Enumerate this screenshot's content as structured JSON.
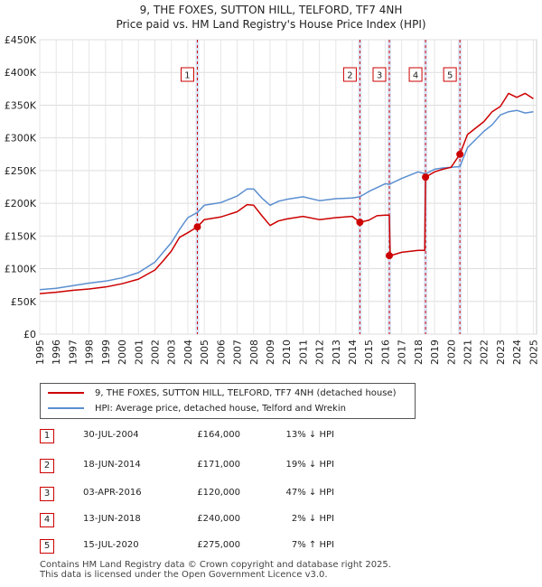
{
  "title_line1": "9, THE FOXES, SUTTON HILL, TELFORD, TF7 4NH",
  "title_line2": "Price paid vs. HM Land Registry's House Price Index (HPI)",
  "colors": {
    "property": "#cc0000",
    "hpi": "#5b8fd0",
    "band": "#dbe4f5",
    "marker_border": "#cc0000"
  },
  "legend": {
    "property": "9, THE FOXES, SUTTON HILL, TELFORD, TF7 4NH (detached house)",
    "hpi": "HPI: Average price, detached house, Telford and Wrekin"
  },
  "transactions": [
    {
      "num": "1",
      "date": "30-JUL-2004",
      "price": "£164,000",
      "hpi": "13% ↓ HPI"
    },
    {
      "num": "2",
      "date": "18-JUN-2014",
      "price": "£171,000",
      "hpi": "19% ↓ HPI"
    },
    {
      "num": "3",
      "date": "03-APR-2016",
      "price": "£120,000",
      "hpi": "47% ↓ HPI"
    },
    {
      "num": "4",
      "date": "13-JUN-2018",
      "price": "£240,000",
      "hpi": "2% ↓ HPI"
    },
    {
      "num": "5",
      "date": "15-JUL-2020",
      "price": "£275,000",
      "hpi": "7% ↑ HPI"
    }
  ],
  "footer_line1": "Contains HM Land Registry data © Crown copyright and database right 2025.",
  "footer_line2": "This data is licensed under the Open Government Licence v3.0.",
  "chart_data": {
    "type": "line",
    "xlabel": "",
    "ylabel": "",
    "xlim": [
      1995,
      2025.2
    ],
    "ylim": [
      0,
      450000
    ],
    "grid": true,
    "y_ticks": [
      {
        "value": 0,
        "label": "£0"
      },
      {
        "value": 50000,
        "label": "£50K"
      },
      {
        "value": 100000,
        "label": "£100K"
      },
      {
        "value": 150000,
        "label": "£150K"
      },
      {
        "value": 200000,
        "label": "£200K"
      },
      {
        "value": 250000,
        "label": "£250K"
      },
      {
        "value": 300000,
        "label": "£300K"
      },
      {
        "value": 350000,
        "label": "£350K"
      },
      {
        "value": 400000,
        "label": "£400K"
      },
      {
        "value": 450000,
        "label": "£450K"
      }
    ],
    "x_ticks": [
      "1995",
      "1996",
      "1997",
      "1998",
      "1999",
      "2000",
      "2001",
      "2002",
      "2003",
      "2004",
      "2005",
      "2006",
      "2007",
      "2008",
      "2009",
      "2010",
      "2011",
      "2012",
      "2013",
      "2014",
      "2015",
      "2016",
      "2017",
      "2018",
      "2019",
      "2020",
      "2021",
      "2022",
      "2023",
      "2024",
      "2025"
    ],
    "sales": [
      {
        "label": "1",
        "x": 2004.58,
        "y": 164000
      },
      {
        "label": "2",
        "x": 2014.46,
        "y": 171000
      },
      {
        "label": "3",
        "x": 2016.25,
        "y": 120000
      },
      {
        "label": "4",
        "x": 2018.45,
        "y": 240000
      },
      {
        "label": "5",
        "x": 2020.54,
        "y": 275000
      }
    ],
    "series": [
      {
        "name": "9, THE FOXES, SUTTON HILL, TELFORD, TF7 4NH (detached house)",
        "x": [
          1995,
          1996,
          1997,
          1998,
          1999,
          2000,
          2001,
          2002,
          2002.5,
          2003,
          2003.5,
          2004,
          2004.58,
          2005,
          2006,
          2007,
          2007.6,
          2008,
          2008.5,
          2009,
          2009.5,
          2010,
          2011,
          2012,
          2013,
          2014,
          2014.46,
          2015,
          2015.5,
          2016,
          2016.25,
          2016.3,
          2017,
          2018,
          2018.4,
          2018.45,
          2019,
          2019.5,
          2020,
          2020.54,
          2021,
          2022,
          2022.5,
          2023,
          2023.5,
          2024,
          2024.5,
          2025
        ],
        "values": [
          62000,
          64000,
          67000,
          69000,
          72000,
          77000,
          84000,
          98000,
          112000,
          127000,
          148000,
          155000,
          164000,
          175000,
          179000,
          187000,
          198000,
          197000,
          181000,
          166000,
          173000,
          176000,
          180000,
          175000,
          178000,
          180000,
          171000,
          174000,
          181000,
          182000,
          182000,
          120000,
          125000,
          128000,
          128000,
          240000,
          248000,
          252000,
          255000,
          275000,
          305000,
          325000,
          340000,
          348000,
          368000,
          362000,
          368000,
          360000
        ]
      },
      {
        "name": "HPI: Average price, detached house, Telford and Wrekin",
        "x": [
          1995,
          1996,
          1997,
          1998,
          1999,
          2000,
          2001,
          2002,
          2002.5,
          2003,
          2003.5,
          2004,
          2004.58,
          2005,
          2006,
          2007,
          2007.6,
          2008,
          2008.5,
          2009,
          2009.5,
          2010,
          2011,
          2012,
          2013,
          2014,
          2014.46,
          2015,
          2016,
          2016.25,
          2017,
          2018,
          2018.45,
          2019,
          2019.5,
          2020,
          2020.54,
          2021,
          2022,
          2022.5,
          2023,
          2023.5,
          2024,
          2024.5,
          2025
        ],
        "values": [
          68000,
          70000,
          74000,
          78000,
          81000,
          86000,
          94000,
          110000,
          125000,
          140000,
          160000,
          178000,
          186000,
          197000,
          201000,
          211000,
          222000,
          222000,
          208000,
          197000,
          203000,
          206000,
          210000,
          204000,
          207000,
          208000,
          210000,
          218000,
          230000,
          229000,
          238000,
          248000,
          245000,
          252000,
          254000,
          255000,
          256000,
          285000,
          310000,
          320000,
          335000,
          340000,
          342000,
          338000,
          340000
        ]
      }
    ]
  }
}
